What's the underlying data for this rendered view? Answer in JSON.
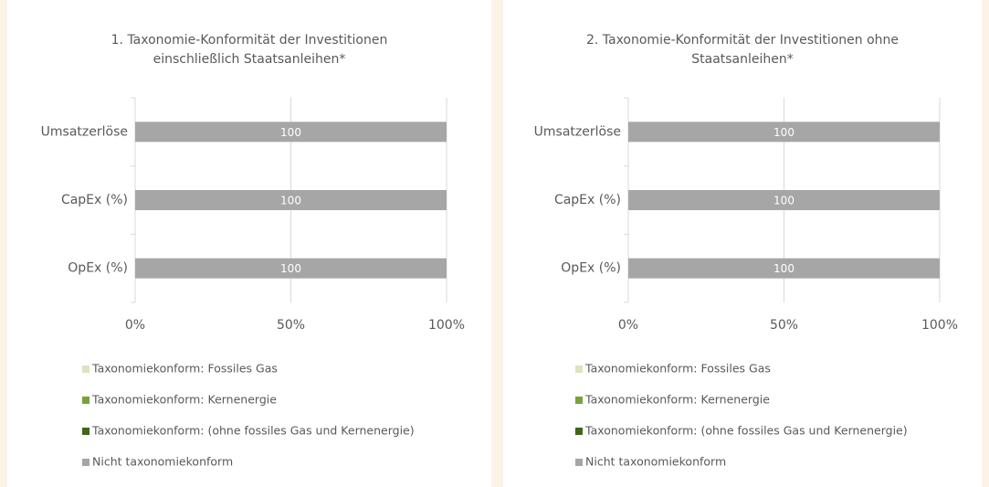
{
  "chart_data": [
    {
      "type": "stacked-bar-horizontal",
      "title": [
        "1. Taxonomie-Konformität der Investitionen",
        "einschließlich Staatsanleihen*"
      ],
      "categories": [
        "Umsatzerlöse",
        "CapEx (%)",
        "OpEx (%)"
      ],
      "series": [
        {
          "name": "Taxonomiekonform: Fossiles Gas",
          "color": "#d9e5c0",
          "values": [
            0,
            0,
            0
          ]
        },
        {
          "name": "Taxonomiekonform: Kernenergie",
          "color": "#77a33a",
          "values": [
            0,
            0,
            0
          ]
        },
        {
          "name": "Taxonomiekonform: (ohne fossiles Gas und Kernenergie)",
          "color": "#3f6619",
          "values": [
            0,
            0,
            0
          ]
        },
        {
          "name": "Nicht taxonomiekonform",
          "color": "#a6a6a6",
          "values": [
            100,
            100,
            100
          ]
        }
      ],
      "xlim": [
        0,
        100
      ],
      "xticks": [
        {
          "value": 0,
          "label": "0%"
        },
        {
          "value": 50,
          "label": "50%"
        },
        {
          "value": 100,
          "label": "100%"
        }
      ],
      "grid": true,
      "legend": "bottom"
    },
    {
      "type": "stacked-bar-horizontal",
      "title": [
        "2. Taxonomie-Konformität der Investitionen ohne",
        "Staatsanleihen*"
      ],
      "categories": [
        "Umsatzerlöse",
        "CapEx (%)",
        "OpEx (%)"
      ],
      "series": [
        {
          "name": "Taxonomiekonform: Fossiles Gas",
          "color": "#d9e5c0",
          "values": [
            0,
            0,
            0
          ]
        },
        {
          "name": "Taxonomiekonform: Kernenergie",
          "color": "#77a33a",
          "values": [
            0,
            0,
            0
          ]
        },
        {
          "name": "Taxonomiekonform: (ohne fossiles Gas und Kernenergie)",
          "color": "#3f6619",
          "values": [
            0,
            0,
            0
          ]
        },
        {
          "name": "Nicht taxonomiekonform",
          "color": "#a6a6a6",
          "values": [
            100,
            100,
            100
          ]
        }
      ],
      "xlim": [
        0,
        100
      ],
      "xticks": [
        {
          "value": 0,
          "label": "0%"
        },
        {
          "value": 50,
          "label": "50%"
        },
        {
          "value": 100,
          "label": "100%"
        }
      ],
      "grid": true,
      "legend": "bottom"
    }
  ]
}
